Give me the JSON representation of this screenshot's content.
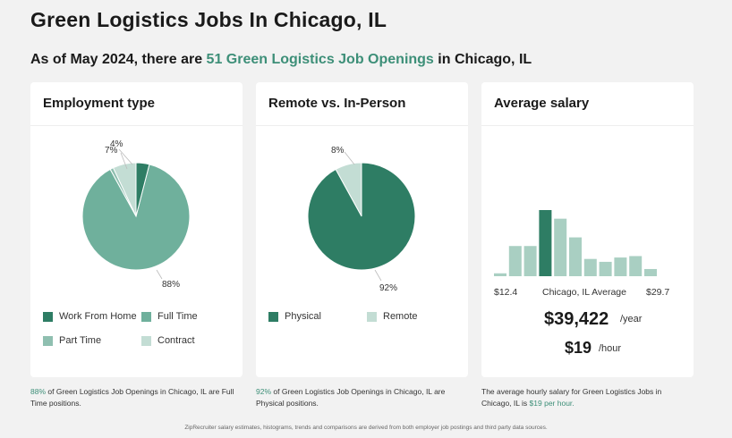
{
  "header": {
    "title": "Green Logistics Jobs In Chicago, IL",
    "subtitle_prefix": "As of May 2024, there are ",
    "subtitle_highlight": "51 Green Logistics Job Openings",
    "subtitle_suffix": " in Chicago, IL"
  },
  "colors": {
    "dark_green": "#2e7d64",
    "medium_green": "#6fb09c",
    "light_green": "#c3ddd4",
    "accent_text": "#3d8f78"
  },
  "employment": {
    "title": "Employment type",
    "labels": {
      "wfh": "4%",
      "contract": "7%",
      "fulltime": "88%"
    },
    "legend": [
      "Work From Home",
      "Full Time",
      "Part Time",
      "Contract"
    ],
    "footnote_pct": "88%",
    "footnote_text": " of Green Logistics Job Openings in Chicago, IL are Full Time positions."
  },
  "remote": {
    "title": "Remote vs. In-Person",
    "labels": {
      "remote": "8%",
      "physical": "92%"
    },
    "legend": [
      "Physical",
      "Remote"
    ],
    "footnote_pct": "92%",
    "footnote_text": " of Green Logistics Job Openings in Chicago, IL are Physical positions."
  },
  "salary": {
    "title": "Average salary",
    "axis_min": "$12.4",
    "axis_mid": "Chicago, IL Average",
    "axis_max": "$29.7",
    "yearly": "$39,422",
    "yearly_unit": "/year",
    "hourly": "$19",
    "hourly_unit": "/hour",
    "footnote_text": "The average hourly salary for Green Logistics Jobs in Chicago, IL is ",
    "footnote_highlight": "$19 per hour."
  },
  "bottom_note": "ZipRecruiter salary estimates, histograms, trends and comparisons are derived from both employer job postings and third party data sources.",
  "chart_data": [
    {
      "type": "pie",
      "title": "Employment type",
      "labels": [
        "Work From Home",
        "Full Time",
        "Part Time",
        "Contract"
      ],
      "values": [
        4,
        88,
        1,
        7
      ],
      "colors": [
        "#2e7d64",
        "#6fb09c",
        "#8fbfb0",
        "#c3ddd4"
      ]
    },
    {
      "type": "pie",
      "title": "Remote vs. In-Person",
      "labels": [
        "Physical",
        "Remote"
      ],
      "values": [
        92,
        8
      ],
      "colors": [
        "#2e7d64",
        "#c3ddd4"
      ]
    },
    {
      "type": "bar",
      "title": "Average salary",
      "xlabel": "",
      "ylabel": "",
      "xlim_labels": [
        "$12.4",
        "$29.7"
      ],
      "values": [
        2,
        21,
        21,
        46,
        40,
        27,
        12,
        10,
        13,
        14,
        5
      ],
      "highlight_index": 3
    }
  ]
}
